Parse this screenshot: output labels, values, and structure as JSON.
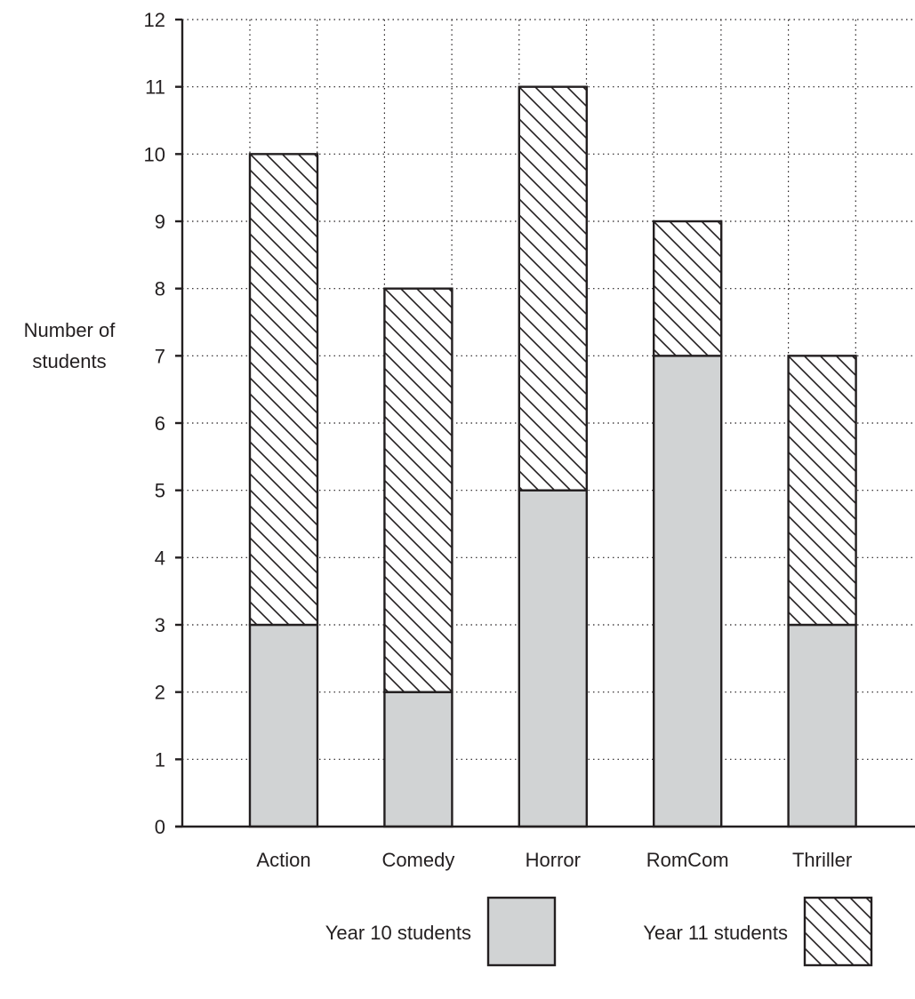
{
  "chart_data": {
    "type": "bar",
    "stacked": true,
    "categories": [
      "Action",
      "Comedy",
      "Horror",
      "RomCom",
      "Thriller"
    ],
    "series": [
      {
        "name": "Year 10 students",
        "values": [
          3,
          2,
          5,
          7,
          3
        ],
        "fill": "#d1d3d4",
        "pattern": "solid"
      },
      {
        "name": "Year 11 students",
        "values": [
          7,
          6,
          6,
          2,
          4
        ],
        "fill": "#ffffff",
        "pattern": "diagonal-hatch"
      }
    ],
    "title": "",
    "xlabel": "",
    "ylabel": "Number of students",
    "ylabel_lines": [
      "Number of",
      "students"
    ],
    "ylim": [
      0,
      12
    ],
    "yticks": [
      0,
      1,
      2,
      3,
      4,
      5,
      6,
      7,
      8,
      9,
      10,
      11,
      12
    ],
    "grid": true,
    "grid_style": "dotted",
    "legend_position": "bottom-right",
    "colors": {
      "ink": "#231f20",
      "grey_fill": "#d1d3d4"
    }
  }
}
